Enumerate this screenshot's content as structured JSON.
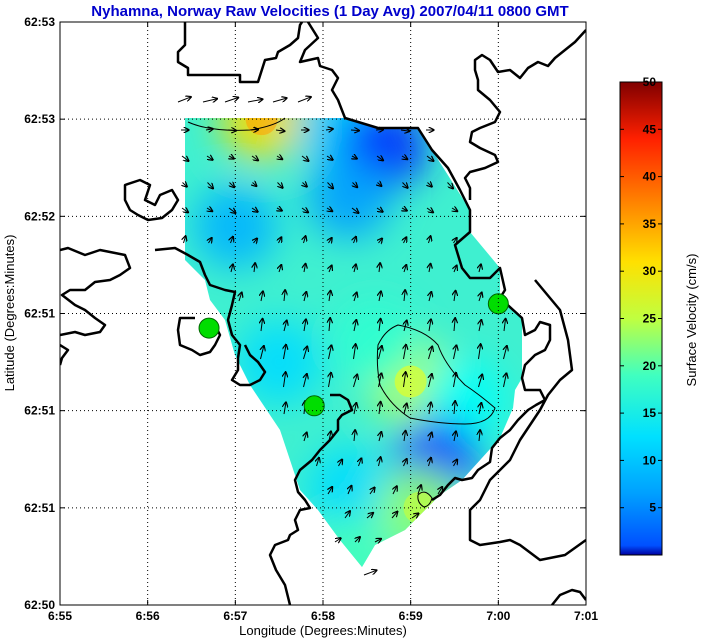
{
  "chart_data": {
    "type": "heatmap",
    "title": "Nyhamna, Norway Raw Velocities (1 Day Avg) 2007/04/11 0800 GMT",
    "xlabel": "Longitude (Degrees:Minutes)",
    "ylabel": "Latitude (Degrees:Minutes)",
    "x_ticks": [
      "6:55",
      "6:56",
      "6:57",
      "6:58",
      "6:59",
      "7:00",
      "7:01"
    ],
    "y_ticks": [
      "62:50",
      "62:51",
      "62:51",
      "62:51",
      "62:52",
      "62:53",
      "62:53"
    ],
    "grid": true,
    "grid_style": "dotted",
    "colorbar": {
      "label": "Surface Velocity (cm/s)",
      "ticks": [
        "5",
        "10",
        "15",
        "20",
        "25",
        "30",
        "35",
        "40",
        "45",
        "50"
      ],
      "range": [
        0,
        50
      ],
      "colormap": "jet",
      "placement": "right"
    },
    "contour_levels_cm_s": [
      25
    ],
    "stations": [
      {
        "lon_min": 56.7,
        "lat_step": 2.85,
        "color": "#00dd00"
      },
      {
        "lon_min": 57.9,
        "lat_step": 2.05,
        "color": "#00dd00"
      },
      {
        "lon_min": 60.0,
        "lat_step": 3.1,
        "color": "#00dd00"
      }
    ],
    "speed_field_cm_s": [
      {
        "lon_min": 57.3,
        "lat_step": 5.0,
        "value": 33
      },
      {
        "lon_min": 58.2,
        "lat_step": 4.9,
        "value": 16
      },
      {
        "lon_min": 58.7,
        "lat_step": 4.7,
        "value": 8
      },
      {
        "lon_min": 58.3,
        "lat_step": 4.2,
        "value": 14
      },
      {
        "lon_min": 57.0,
        "lat_step": 3.9,
        "value": 15
      },
      {
        "lon_min": 59.0,
        "lat_step": 2.3,
        "value": 28
      },
      {
        "lon_min": 58.6,
        "lat_step": 2.7,
        "value": 21
      },
      {
        "lon_min": 59.6,
        "lat_step": 2.1,
        "value": 19
      },
      {
        "lon_min": 59.3,
        "lat_step": 1.5,
        "value": 9
      },
      {
        "lon_min": 57.5,
        "lat_step": 2.5,
        "value": 17
      },
      {
        "lon_min": 58.3,
        "lat_step": 1.2,
        "value": 17
      },
      {
        "lon_min": 59.1,
        "lat_step": 1.0,
        "value": 26
      },
      {
        "lon_min": 58.3,
        "lat_step": 0.5,
        "value": 22
      }
    ],
    "arrows_note": "",
    "colors": {
      "title": "#0000cc",
      "coast": "#000000",
      "station": "#00dd00"
    }
  }
}
